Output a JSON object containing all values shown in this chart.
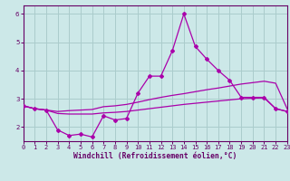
{
  "x": [
    0,
    1,
    2,
    3,
    4,
    5,
    6,
    7,
    8,
    9,
    10,
    11,
    12,
    13,
    14,
    15,
    16,
    17,
    18,
    19,
    20,
    21,
    22,
    23
  ],
  "line1": [
    2.75,
    2.65,
    2.6,
    1.9,
    1.7,
    1.75,
    1.65,
    2.4,
    2.25,
    2.3,
    3.2,
    3.8,
    3.8,
    4.7,
    6.0,
    4.85,
    4.4,
    4.0,
    3.65,
    3.05,
    3.05,
    3.05,
    2.65,
    2.55
  ],
  "line2": [
    2.75,
    2.65,
    2.6,
    2.55,
    2.58,
    2.6,
    2.62,
    2.72,
    2.75,
    2.8,
    2.88,
    2.97,
    3.05,
    3.12,
    3.18,
    3.25,
    3.32,
    3.38,
    3.45,
    3.52,
    3.57,
    3.62,
    3.55,
    2.65
  ],
  "line3": [
    2.75,
    2.65,
    2.6,
    2.48,
    2.46,
    2.46,
    2.46,
    2.5,
    2.52,
    2.55,
    2.6,
    2.65,
    2.7,
    2.75,
    2.8,
    2.84,
    2.88,
    2.92,
    2.96,
    3.0,
    3.02,
    3.03,
    2.65,
    2.55
  ],
  "line_color": "#aa00aa",
  "bg_color": "#cce8e8",
  "grid_color": "#aacccc",
  "axis_color": "#660066",
  "tick_color": "#660066",
  "xlabel": "Windchill (Refroidissement éolien,°C)",
  "ylim": [
    1.5,
    6.3
  ],
  "xlim": [
    0,
    23
  ],
  "yticks": [
    2,
    3,
    4,
    5,
    6
  ],
  "xticks": [
    0,
    1,
    2,
    3,
    4,
    5,
    6,
    7,
    8,
    9,
    10,
    11,
    12,
    13,
    14,
    15,
    16,
    17,
    18,
    19,
    20,
    21,
    22,
    23
  ]
}
